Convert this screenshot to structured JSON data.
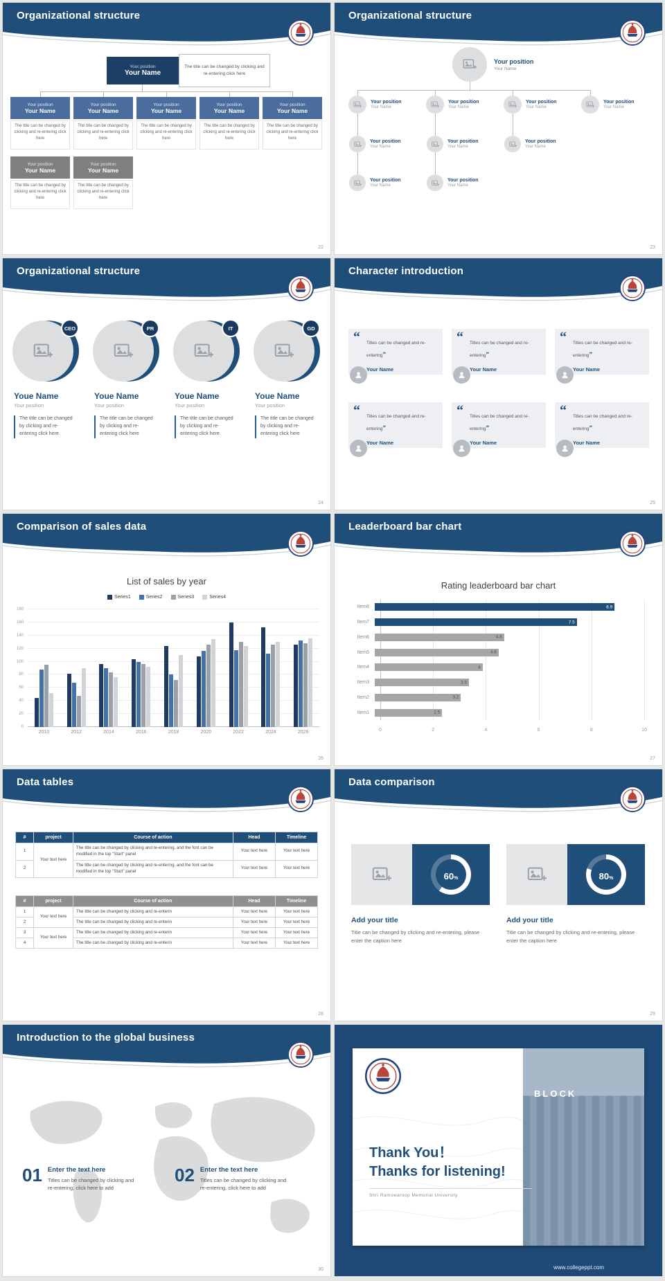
{
  "site": {
    "footer_url": "www.collegeppt.com"
  },
  "theme": {
    "navy": "#1f4e79",
    "steel_blue": "#4a6d9e",
    "gray_box": "#7f7f7f",
    "card_gray": "#edeff2",
    "seal_red": "#b8443a"
  },
  "slides": {
    "s22": {
      "title": "Organizational structure",
      "page": "22",
      "position_label": "Your position",
      "name_label": "Your Name",
      "note": "The title can be changed by clicking and re-entering click here",
      "desc": "The title can be changed by clicking and re-entering click here"
    },
    "s23": {
      "title": "Organizational structure",
      "page": "23",
      "position_label": "Your position",
      "name_label": "Your Name"
    },
    "s24": {
      "title": "Organizational structure",
      "page": "24",
      "badges": [
        "CEO",
        "PR",
        "IT",
        "GD"
      ],
      "name_label": "Youe Name",
      "position_label": "Your position",
      "desc": "The title can be changed by clicking and re-entering click here"
    },
    "s25": {
      "title": "Character introduction",
      "page": "25",
      "open_quote": "“",
      "close_quote": "”",
      "quote_text": "Titles can be changed and re-entering",
      "name_label": "Your Name"
    },
    "s26": {
      "title": "Comparison of sales data",
      "page": "26"
    },
    "s27": {
      "title": "Leaderboard bar chart",
      "page": "27"
    },
    "s28": {
      "title": "Data tables",
      "page": "28",
      "table1": {
        "headers": [
          "#",
          "project",
          "Course of action",
          "Head",
          "Timeline"
        ],
        "row_nums": [
          "1",
          "2"
        ],
        "project": "Your text here",
        "action": "The title can be changed by clicking and re-entering, and the font can be modified in the top \"Start\" panel",
        "head": "Your text here",
        "timeline": "Your text here"
      },
      "table2": {
        "headers": [
          "#",
          "project",
          "Course of action",
          "Head",
          "Timeline"
        ],
        "row_nums": [
          "1",
          "2",
          "3",
          "4"
        ],
        "project": "Your text here",
        "action": "The title can be changed by clicking and re-enterin",
        "head": "Your text here",
        "timeline": "Your text here"
      }
    },
    "s29": {
      "title": "Data comparison",
      "page": "29",
      "panels": [
        {
          "percent": "60",
          "unit": "%"
        },
        {
          "percent": "80",
          "unit": "%"
        }
      ],
      "heading": "Add your title",
      "caption": "Title can be changed by clicking and re-entering, please enter the caption here"
    },
    "s30": {
      "title": "Introduction to the global business",
      "page": "30",
      "items": [
        {
          "num": "01",
          "heading": "Enter the text here",
          "desc": "Titles can be changed by clicking and re-entering, click here to add"
        },
        {
          "num": "02",
          "heading": "Enter the text here",
          "desc": "Titles can be changed by clicking and re-entering, click here to add"
        }
      ]
    },
    "thanks": {
      "line1": "Thank You！",
      "line2": "Thanks for listening!",
      "university": "Shri Ramswaroop Memorial University",
      "photo_label": "BLOCK",
      "footer_url": "www.collegeppt.com"
    }
  },
  "chart_data": [
    {
      "id": "sales_by_year",
      "type": "bar",
      "title": "List of sales by year",
      "categories": [
        "2010",
        "2012",
        "2014",
        "2016",
        "2018",
        "2020",
        "2022",
        "2024",
        "2026"
      ],
      "series": [
        {
          "name": "Series1",
          "color": "#1f3a63",
          "values": [
            45,
            82,
            96,
            104,
            124,
            108,
            160,
            152,
            126
          ]
        },
        {
          "name": "Series2",
          "color": "#4472a8",
          "values": [
            88,
            68,
            90,
            100,
            80,
            116,
            118,
            112,
            132
          ]
        },
        {
          "name": "Series3",
          "color": "#9aa0a8",
          "values": [
            95,
            48,
            84,
            96,
            72,
            126,
            130,
            126,
            128
          ]
        },
        {
          "name": "Series4",
          "color": "#d0d3d7",
          "values": [
            52,
            90,
            76,
            92,
            110,
            134,
            124,
            130,
            136
          ]
        }
      ],
      "xlabel": "",
      "ylabel": "",
      "ylim": [
        0,
        180
      ],
      "ytick_step": 20,
      "grid": true,
      "legend_position": "top"
    },
    {
      "id": "rating_leaderboard",
      "type": "bar",
      "orientation": "horizontal",
      "title": "Rating leaderboard bar chart",
      "categories": [
        "Item8",
        "Item7",
        "Item6",
        "Item5",
        "Item4",
        "Item3",
        "Item2",
        "Item1"
      ],
      "values": [
        8.9,
        7.5,
        4.8,
        4.6,
        4,
        3.5,
        3.2,
        2.5
      ],
      "bar_colors": [
        "#1f4e79",
        "#1f4e79",
        "#a6a6a6",
        "#a6a6a6",
        "#a6a6a6",
        "#a6a6a6",
        "#a6a6a6",
        "#a6a6a6"
      ],
      "xlim": [
        0,
        10
      ],
      "xticks": [
        0,
        2,
        4,
        6,
        8,
        10
      ],
      "grid": true,
      "legend_position": "none"
    }
  ]
}
